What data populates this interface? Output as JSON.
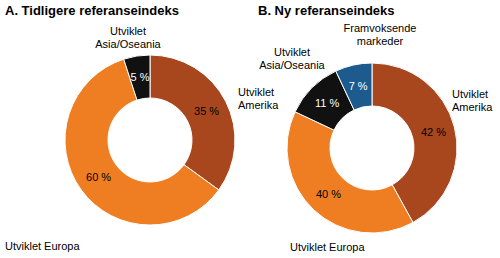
{
  "chart_data": [
    {
      "type": "pie",
      "title": "A. Tidligere referanseindeks",
      "categories": [
        "Utviklet Amerika",
        "Utviklet Europa",
        "Utviklet Asia/Oseania"
      ],
      "values": [
        35,
        60,
        5
      ],
      "value_labels": [
        "35 %",
        "60 %",
        "5 %"
      ],
      "colors": [
        "#a8471d",
        "#ef7d22",
        "#111111"
      ],
      "data_labels": true
    },
    {
      "type": "pie",
      "title": "B. Ny referanseindeks",
      "categories": [
        "Utviklet Amerika",
        "Utviklet Europa",
        "Utviklet Asia/Oseania",
        "Framvoksende markeder"
      ],
      "values": [
        42,
        40,
        11,
        7
      ],
      "value_labels": [
        "42 %",
        "40 %",
        "11 %",
        "7 %"
      ],
      "colors": [
        "#a8471d",
        "#ef7d22",
        "#111111",
        "#1d5a8e"
      ],
      "data_labels": true
    }
  ]
}
